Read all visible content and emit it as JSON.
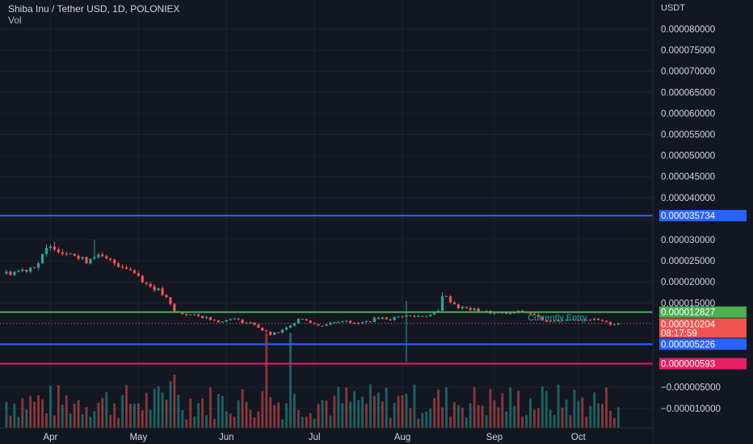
{
  "header": {
    "symbol_title": "Shiba Inu / Tether USD, 1D, POLONIEX",
    "vol_label": "Vol"
  },
  "price_axis": {
    "unit_label": "USDT"
  },
  "colors": {
    "background": "#131722",
    "grid": "#1e222d",
    "up": "#26a69a",
    "down": "#ef5350",
    "axis_text": "#d1d4dc",
    "line_blue": "#2962ff",
    "line_green": "#4caf50",
    "line_pink": "#e91e63"
  },
  "chart_data": {
    "type": "candlestick",
    "title": "Shiba Inu / Tether USD, 1D, POLONIEX",
    "ylabel": "USDT",
    "ylim": [
      -1.2e-05,
      8.3e-05
    ],
    "grid": true,
    "y_ticks": [
      "0.000080000",
      "0.000075000",
      "0.000070000",
      "0.000065000",
      "0.000060000",
      "0.000055000",
      "0.000050000",
      "0.000045000",
      "0.000040000",
      "0.000030000",
      "0.000025000",
      "0.000020000",
      "0.000015000",
      "−0.000005000",
      "−0.000010000"
    ],
    "y_tick_values": [
      8e-05,
      7.5e-05,
      7e-05,
      6.5e-05,
      6e-05,
      5.5e-05,
      5e-05,
      4.5e-05,
      4e-05,
      3e-05,
      2.5e-05,
      2e-05,
      1.5e-05,
      -5e-06,
      -1e-05
    ],
    "x_ticks": [
      "Apr",
      "May",
      "Jun",
      "Jul",
      "Aug",
      "Sep",
      "Oct"
    ],
    "x_tick_days": [
      11,
      33,
      55,
      77,
      99,
      122,
      143
    ],
    "x_range_days": [
      0,
      160
    ],
    "horizontal_lines": [
      {
        "price": 3.5734e-05,
        "label": "0.000035734",
        "color": "#2962ff"
      },
      {
        "price": 1.2827e-05,
        "label": "0.000012827",
        "color": "#4caf50"
      },
      {
        "price": 5.226e-06,
        "label": "0.000005226",
        "color": "#2962ff"
      },
      {
        "price": 5.93e-07,
        "label": "0.000000593",
        "color": "#e91e63"
      }
    ],
    "current_price": {
      "price": 1.0204e-05,
      "label": "0.000010204",
      "countdown": "08:17:59",
      "color": "#ef5350"
    },
    "annotation": {
      "text": "Currently Entry",
      "price": 1.16e-05,
      "day": 138
    },
    "price_anchors": [
      [
        0,
        2.2e-05
      ],
      [
        5,
        2.3e-05
      ],
      [
        8,
        2.45e-05
      ],
      [
        10,
        2.75e-05
      ],
      [
        12,
        2.85e-05
      ],
      [
        14,
        2.7e-05
      ],
      [
        16,
        2.75e-05
      ],
      [
        18,
        2.55e-05
      ],
      [
        20,
        2.5e-05
      ],
      [
        22,
        2.65e-05
      ],
      [
        24,
        2.55e-05
      ],
      [
        27,
        2.45e-05
      ],
      [
        30,
        2.35e-05
      ],
      [
        33,
        2.15e-05
      ],
      [
        35,
        1.95e-05
      ],
      [
        38,
        1.8e-05
      ],
      [
        40,
        1.6e-05
      ],
      [
        42,
        1.3e-05
      ],
      [
        44,
        1.25e-05
      ],
      [
        47,
        1.2e-05
      ],
      [
        50,
        1.15e-05
      ],
      [
        54,
        1.05e-05
      ],
      [
        56,
        1.15e-05
      ],
      [
        59,
        1.05e-05
      ],
      [
        62,
        1e-05
      ],
      [
        64,
        8.5e-06
      ],
      [
        66,
        7.5e-06
      ],
      [
        68,
        8e-06
      ],
      [
        71,
        9.5e-06
      ],
      [
        73,
        1.15e-05
      ],
      [
        75,
        1.1e-05
      ],
      [
        78,
        9.5e-06
      ],
      [
        82,
        1.05e-05
      ],
      [
        85,
        1.1e-05
      ],
      [
        87,
        1e-05
      ],
      [
        90,
        1.05e-05
      ],
      [
        93,
        1.15e-05
      ],
      [
        96,
        1.12e-05
      ],
      [
        99,
        1.2e-05
      ],
      [
        102,
        1.18e-05
      ],
      [
        106,
        1.22e-05
      ],
      [
        108,
        1.3e-05
      ],
      [
        109,
        1.7e-05
      ],
      [
        111,
        1.55e-05
      ],
      [
        113,
        1.4e-05
      ],
      [
        116,
        1.35e-05
      ],
      [
        119,
        1.3e-05
      ],
      [
        123,
        1.25e-05
      ],
      [
        126,
        1.25e-05
      ],
      [
        129,
        1.3e-05
      ],
      [
        131,
        1.25e-05
      ],
      [
        133,
        1.15e-05
      ],
      [
        136,
        1.05e-05
      ],
      [
        139,
        1.12e-05
      ],
      [
        142,
        1.1e-05
      ],
      [
        145,
        1.12e-05
      ],
      [
        148,
        1.08e-05
      ],
      [
        151,
        1e-05
      ],
      [
        153,
        1.02e-05
      ]
    ],
    "wick_spikes": [
      {
        "day": 22,
        "high": 3e-05
      },
      {
        "day": 12,
        "high": 2.95e-05
      },
      {
        "day": 100,
        "high": 1.55e-05,
        "low": 1e-06
      },
      {
        "day": 109,
        "high": 1.75e-05
      }
    ],
    "volume": {
      "scale_note": "relative",
      "spikes": [
        {
          "day": 41,
          "rel": 0.48,
          "dir": "up"
        },
        {
          "day": 42,
          "rel": 0.55,
          "dir": "down"
        },
        {
          "day": 65,
          "rel": 0.98,
          "dir": "down"
        },
        {
          "day": 71,
          "rel": 0.98,
          "dir": "up"
        },
        {
          "day": 100,
          "rel": 0.35,
          "dir": "up"
        }
      ]
    }
  }
}
